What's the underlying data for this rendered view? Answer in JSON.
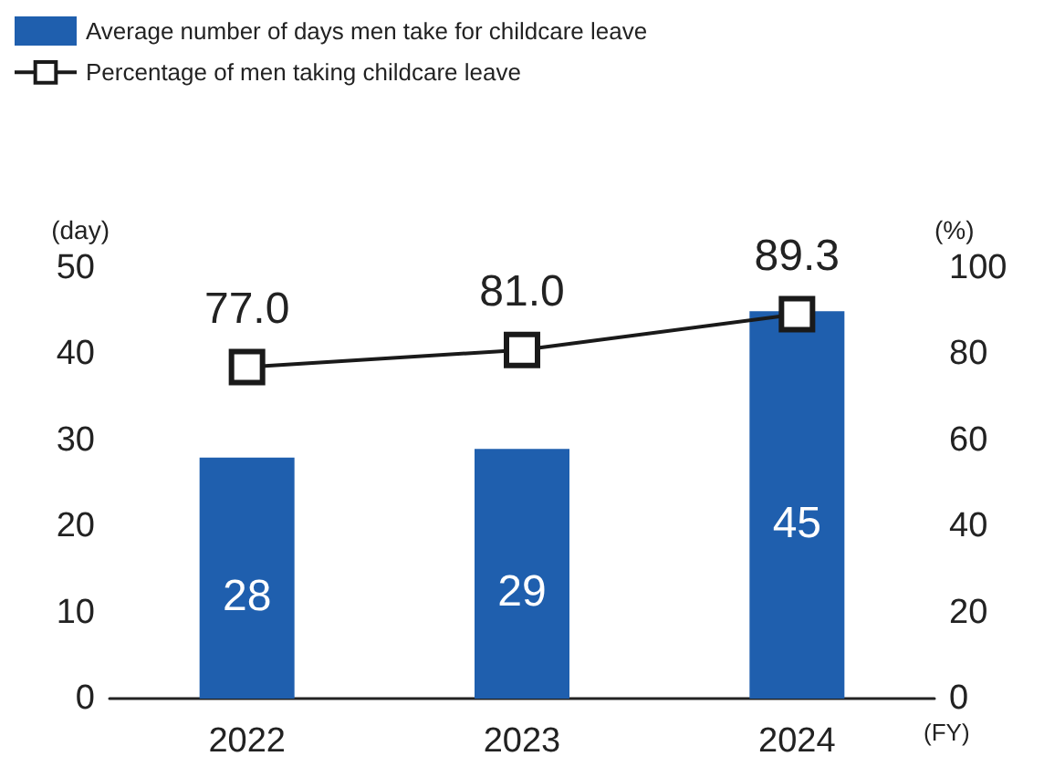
{
  "chart_data": {
    "type": "bar",
    "categories": [
      "2022",
      "2023",
      "2024"
    ],
    "series": [
      {
        "name": "Average number of days men take for childcare leave",
        "color": "#1f5fae",
        "values": [
          28,
          29,
          45
        ]
      },
      {
        "name": "Percentage of men taking childcare leave",
        "type": "line",
        "axis": "y2",
        "color": "#1a1a1a",
        "values": [
          77.0,
          81.0,
          89.3
        ],
        "value_labels": [
          "77.0",
          "81.0",
          "89.3"
        ]
      }
    ],
    "ylabel": "(day)",
    "y2label": "(%)",
    "xlabel": "(FY)",
    "ylim": [
      0,
      50
    ],
    "yticks": [
      0,
      10,
      20,
      30,
      40,
      50
    ],
    "y2lim": [
      0,
      100
    ],
    "y2ticks": [
      0,
      20,
      40,
      60,
      80,
      100
    ],
    "data_labels": true,
    "marker": "square",
    "line_style": "solid",
    "grid": false,
    "legend": "top left"
  }
}
